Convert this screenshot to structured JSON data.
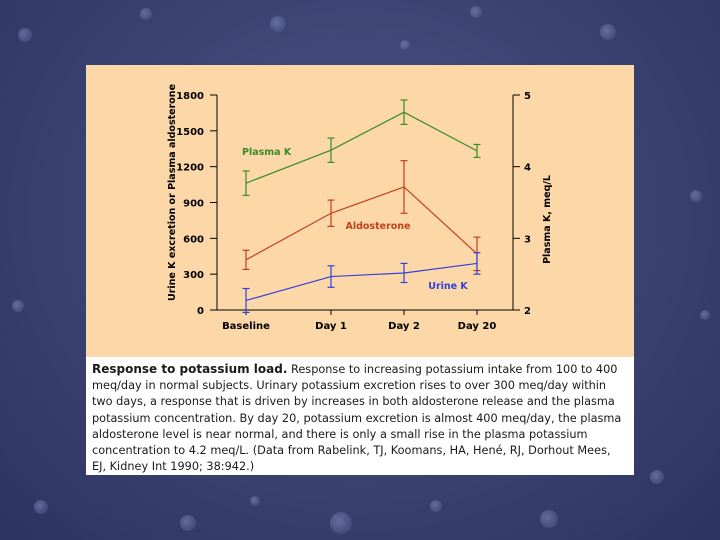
{
  "caption": {
    "title": "Response to potassium load.",
    "text": " Response to increasing potassium intake from 100 to 400 meq/day in normal subjects. Urinary potassium excretion rises to over 300 meq/day within two days, a response that is driven by increases in both aldosterone release and the plasma potassium concentration. By day 20, potassium excretion is almost 400 meq/day, the plasma aldosterone level is near normal, and there is only a small rise in the plasma potassium concentration to 4.2 meq/L. (Data from Rabelink, TJ, Koomans, HA, Hené, RJ, Dorhout Mees, EJ, Kidney Int 1990; 38:942.)"
  },
  "chart_data": {
    "type": "line",
    "categories": [
      "Baseline",
      "Day 1",
      "Day 2",
      "Day 20"
    ],
    "y_left": {
      "label": "Urine K excretion or Plasma aldosterone",
      "ticks": [
        "0",
        "300",
        "600",
        "900",
        "1200",
        "1500",
        "1800"
      ],
      "range": [
        0,
        1800
      ]
    },
    "y_right": {
      "label": "Plasma K, meq/L",
      "ticks": [
        "2",
        "3",
        "4",
        "5"
      ],
      "range": [
        2,
        5
      ]
    },
    "grid": false,
    "series": [
      {
        "name": "Plasma K",
        "axis": "right",
        "color": "#3a8a2a",
        "values": [
          3.77,
          4.23,
          4.76,
          4.22
        ],
        "errors": [
          0.17,
          0.17,
          0.17,
          0.09
        ]
      },
      {
        "name": "Aldosterone",
        "axis": "left",
        "color": "#c2401c",
        "values": [
          420,
          810,
          1030,
          470
        ],
        "errors": [
          80,
          110,
          220,
          140
        ]
      },
      {
        "name": "Urine K",
        "axis": "left",
        "color": "#3340d8",
        "values": [
          80,
          280,
          310,
          390
        ],
        "errors": [
          100,
          90,
          80,
          90
        ]
      }
    ]
  }
}
